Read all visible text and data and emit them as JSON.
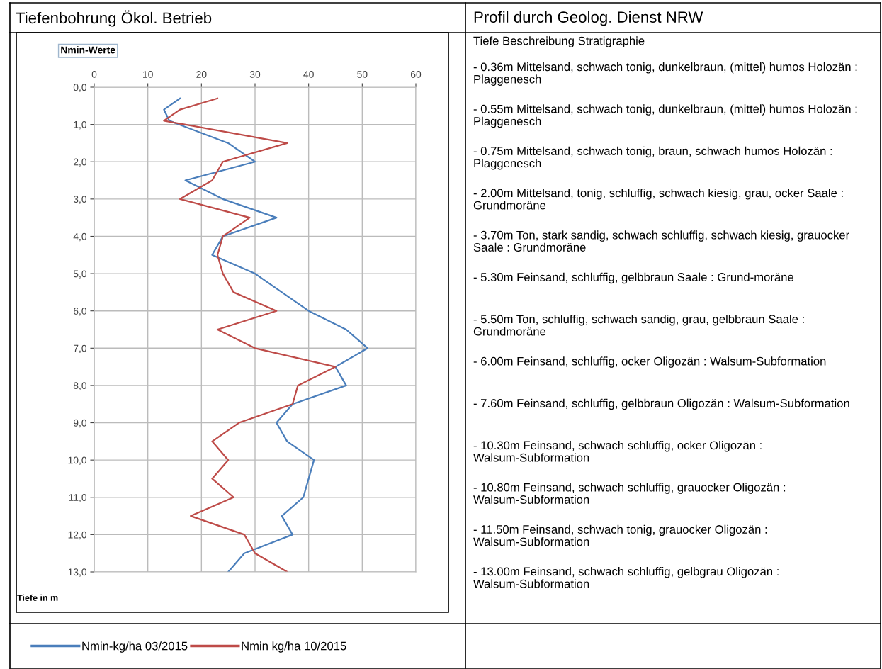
{
  "chart_data": {
    "type": "line",
    "title": "Nmin-Werte",
    "ylabel": "Tiefe in m",
    "xlim": [
      0,
      60
    ],
    "xticks": [
      0,
      10,
      20,
      30,
      40,
      50,
      60
    ],
    "ylim": [
      13,
      0
    ],
    "yticks": [
      {
        "value": 0,
        "label": "0,0"
      },
      {
        "value": 1,
        "label": "1,0"
      },
      {
        "value": 2,
        "label": "2,0"
      },
      {
        "value": 3,
        "label": "3,0"
      },
      {
        "value": 4,
        "label": "4,0"
      },
      {
        "value": 5,
        "label": "5,0"
      },
      {
        "value": 6,
        "label": "6,0"
      },
      {
        "value": 7,
        "label": "7,0"
      },
      {
        "value": 8,
        "label": "8,0"
      },
      {
        "value": 9,
        "label": "9,0"
      },
      {
        "value": 10,
        "label": "10,0"
      },
      {
        "value": 11,
        "label": "11,0"
      },
      {
        "value": 12,
        "label": "12,0"
      },
      {
        "value": 13,
        "label": "13,0"
      }
    ],
    "grid": true,
    "legend": "bottom",
    "marker": "none",
    "line_style": "solid",
    "series": [
      {
        "name": "Nmin-kg/ha 03/2015",
        "color": "#4a7ebb",
        "x": [
          16,
          13,
          14,
          25,
          30,
          17,
          24,
          34,
          24,
          22,
          30,
          40,
          47,
          51,
          45,
          47,
          37,
          34,
          36,
          41,
          39,
          35,
          37,
          28,
          25
        ],
        "values": [
          0.3,
          0.6,
          0.9,
          1.5,
          2.0,
          2.5,
          3.0,
          3.5,
          4.0,
          4.5,
          5.0,
          6.0,
          6.5,
          7.0,
          7.5,
          8.0,
          8.5,
          9.0,
          9.5,
          10.0,
          11.0,
          11.5,
          12.0,
          12.5,
          13.0
        ]
      },
      {
        "name": "Nmin kg/ha 10/2015",
        "color": "#be4b48",
        "x": [
          23,
          16,
          13,
          36,
          24,
          22,
          16,
          29,
          24,
          23,
          24,
          26,
          34,
          23,
          30,
          45,
          38,
          37,
          27,
          22,
          25,
          22,
          26,
          18,
          28,
          30,
          36
        ],
        "values": [
          0.3,
          0.6,
          0.9,
          1.5,
          2.0,
          2.5,
          3.0,
          3.5,
          4.0,
          4.5,
          5.0,
          5.5,
          6.0,
          6.5,
          7.0,
          7.5,
          8.0,
          8.5,
          9.0,
          9.5,
          10.0,
          10.5,
          11.0,
          11.5,
          12.0,
          12.5,
          13.0
        ]
      }
    ],
    "annotations": [
      "Tiefenbohrung Ökol. Betrieb",
      "Profil durch Geolog. Dienst NRW",
      "Tiefe Beschreibung Stratigraphie",
      "- 0.36m Mittelsand, schwach tonig, dunkelbraun, (mittel) humos Holozän : Plaggenesch",
      "- 0.55m Mittelsand, schwach tonig, dunkelbraun, (mittel) humos Holozän : Plaggenesch",
      "- 0.75m Mittelsand, schwach tonig, braun, schwach humos Holozän : Plaggenesch",
      "- 2.00m Mittelsand, tonig, schluffig, schwach kiesig, grau, ocker Saale : Grundmoräne",
      "- 3.70m Ton, stark sandig, schwach schluffig, schwach kiesig, grauocker Saale : Grundmoräne",
      "- 5.30m Feinsand, schluffig, gelbbraun Saale : Grund-moräne",
      "- 5.50m Ton, schluffig, schwach sandig, grau, gelbbraun Saale : Grundmoräne",
      "- 6.00m Feinsand, schluffig, ocker Oligozän : Walsum-Subformation",
      "- 7.60m Feinsand, schluffig, gelbbraun Oligozän : Walsum-Subformation",
      "- 10.30m Feinsand, schwach schluffig, ocker Oligozän : Walsum-Subformation",
      "- 10.80m Feinsand, schwach schluffig, grauocker Oligozän : Walsum-Subformation",
      "- 11.50m Feinsand, schwach tonig, grauocker Oligozän : Walsum-Subformation",
      "- 13.00m Feinsand, schwach schluffig, gelbgrau Oligozän : Walsum-Subformation"
    ]
  }
}
